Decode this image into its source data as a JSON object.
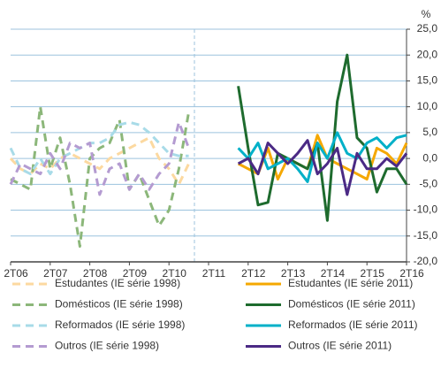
{
  "chart_data": {
    "type": "line",
    "unit": "%",
    "categories": [
      "2T06",
      null,
      null,
      null,
      "2T07",
      null,
      null,
      null,
      "2T08",
      null,
      null,
      null,
      "2T09",
      null,
      null,
      null,
      "2T10",
      null,
      null,
      null,
      "2T11",
      null,
      null,
      null,
      "2T12",
      null,
      null,
      null,
      "2T13",
      null,
      null,
      null,
      "2T14",
      null,
      null,
      null,
      "2T15",
      null,
      null,
      null,
      "2T16"
    ],
    "ylim": [
      -20,
      25
    ],
    "yticks": [
      {
        "value": -20,
        "label": "-20,0"
      },
      {
        "value": -15,
        "label": "-15,0"
      },
      {
        "value": -10,
        "label": "-10,0"
      },
      {
        "value": -5,
        "label": "-5,0"
      },
      {
        "value": 0,
        "label": "0,0"
      },
      {
        "value": 5,
        "label": "5,0"
      },
      {
        "value": 10,
        "label": "10,0"
      },
      {
        "value": 15,
        "label": "15,0"
      },
      {
        "value": 20,
        "label": "20,0"
      },
      {
        "value": 25,
        "label": "25,0"
      }
    ],
    "grid": true,
    "series": [
      {
        "name": "Estudantes (IE série 1998)",
        "color": "#fcd9a0",
        "dash": true,
        "values": [
          0,
          -2,
          -3,
          -1,
          -2,
          0,
          1,
          0,
          -1,
          -2,
          0,
          1,
          2,
          3,
          4,
          0,
          -2,
          -5,
          -1,
          null,
          null,
          null,
          null,
          null,
          null,
          null,
          null,
          null,
          null,
          null,
          null,
          null,
          null,
          null,
          null,
          null,
          null,
          null,
          null,
          null,
          null
        ]
      },
      {
        "name": "Domésticos (IE série 1998)",
        "color": "#8cb77a",
        "dash": true,
        "values": [
          -4,
          -5,
          -6,
          10,
          -2,
          4,
          -5,
          -17,
          0,
          2,
          3,
          7.5,
          -6,
          -3,
          -8,
          -13,
          -10,
          -2,
          9,
          null,
          null,
          null,
          null,
          null,
          null,
          null,
          null,
          null,
          null,
          null,
          null,
          null,
          null,
          null,
          null,
          null,
          null,
          null,
          null,
          null,
          null
        ]
      },
      {
        "name": "Reformados (IE série 1998)",
        "color": "#a8dbe8",
        "dash": true,
        "values": [
          2,
          -2,
          -3,
          0,
          -3,
          0,
          1,
          2,
          3,
          3,
          4,
          6.5,
          7,
          6.5,
          5,
          3,
          1,
          0.5,
          0.5,
          null,
          null,
          null,
          null,
          null,
          null,
          null,
          null,
          null,
          null,
          null,
          null,
          null,
          null,
          null,
          null,
          null,
          null,
          null,
          null,
          null,
          null
        ]
      },
      {
        "name": "Outros (IE série 1998)",
        "color": "#b49bd1",
        "dash": true,
        "values": [
          -5,
          -1,
          -2,
          -3,
          1,
          -2,
          3,
          2,
          3,
          -7,
          -2,
          -1,
          -6,
          -3,
          -6,
          -3,
          -1,
          7,
          2,
          null,
          null,
          null,
          null,
          null,
          null,
          null,
          null,
          null,
          null,
          null,
          null,
          null,
          null,
          null,
          null,
          null,
          null,
          null,
          null,
          null,
          null
        ]
      },
      {
        "name": "Estudantes (IE série 2011)",
        "color": "#f5a800",
        "dash": false,
        "values": [
          null,
          null,
          null,
          null,
          null,
          null,
          null,
          null,
          null,
          null,
          null,
          null,
          null,
          null,
          null,
          null,
          null,
          null,
          null,
          null,
          null,
          null,
          null,
          -1,
          -2,
          -3,
          2,
          -4,
          0,
          -1,
          -2,
          4.5,
          0,
          -1,
          -2,
          -3,
          -4,
          2,
          1,
          -1,
          3
        ]
      },
      {
        "name": "Domésticos  (IE série 2011)",
        "color": "#1e6b2e",
        "dash": false,
        "values": [
          null,
          null,
          null,
          null,
          null,
          null,
          null,
          null,
          null,
          null,
          null,
          null,
          null,
          null,
          null,
          null,
          null,
          null,
          null,
          null,
          null,
          null,
          null,
          14,
          2,
          -9,
          -8.5,
          1,
          0,
          -1,
          -2,
          3,
          -12,
          11,
          20,
          4,
          2,
          -6.5,
          -2,
          -2,
          -5
        ]
      },
      {
        "name": "Reformados (IE série 2011)",
        "color": "#00b0c8",
        "dash": false,
        "values": [
          null,
          null,
          null,
          null,
          null,
          null,
          null,
          null,
          null,
          null,
          null,
          null,
          null,
          null,
          null,
          null,
          null,
          null,
          null,
          null,
          null,
          null,
          null,
          2,
          0,
          3,
          -2,
          -1,
          0,
          -2,
          -4.5,
          3,
          0,
          5,
          1,
          0,
          3,
          4,
          2,
          4,
          4.5
        ]
      },
      {
        "name": "Outros (IE série 2011)",
        "color": "#4b2a85",
        "dash": false,
        "values": [
          null,
          null,
          null,
          null,
          null,
          null,
          null,
          null,
          null,
          null,
          null,
          null,
          null,
          null,
          null,
          null,
          null,
          null,
          null,
          null,
          null,
          null,
          null,
          -1,
          0,
          -3,
          3,
          1,
          -1,
          1,
          3.5,
          -3,
          -1,
          2,
          -7,
          1,
          -2,
          -2,
          0,
          -1.5,
          1
        ]
      }
    ]
  }
}
